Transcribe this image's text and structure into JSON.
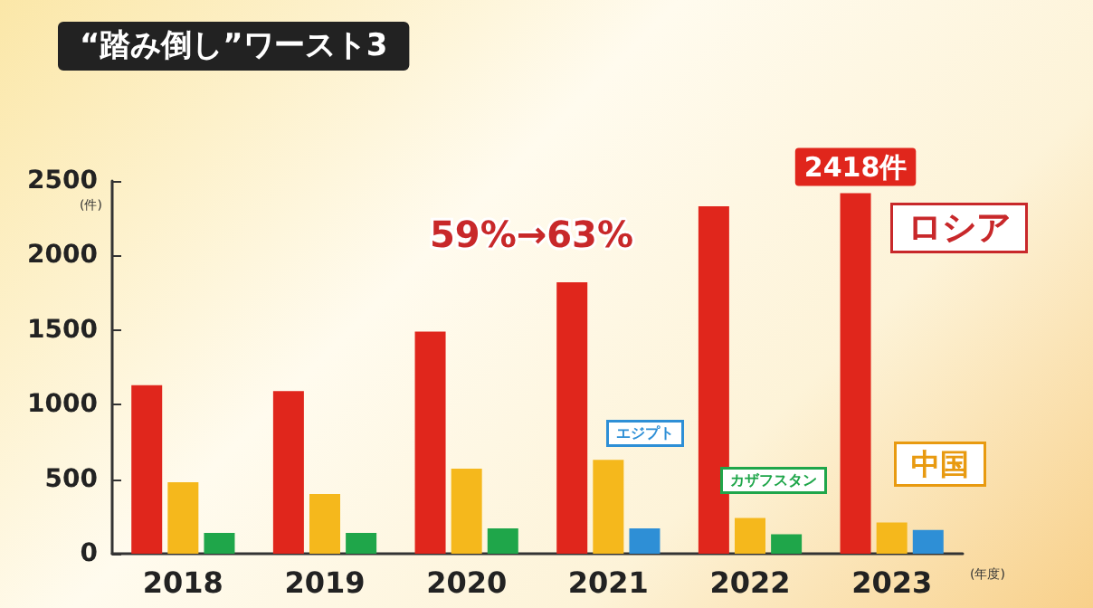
{
  "chart_data": {
    "type": "bar",
    "title": "“踏み倒し”ワースト3",
    "ylabel": "(件)",
    "xlabel": "(年度)",
    "categories": [
      "2018",
      "2019",
      "2020",
      "2021",
      "2022",
      "2023"
    ],
    "series": [
      {
        "color": "#e0261c",
        "values": [
          1130,
          1090,
          1490,
          1820,
          2330,
          2418
        ],
        "value_labels": [
          null,
          null,
          null,
          null,
          null,
          "2418件"
        ]
      },
      {
        "color": "#f5b81c",
        "values": [
          480,
          400,
          570,
          630,
          240,
          210
        ]
      },
      {
        "colors": [
          "#1fa64a",
          "#1fa64a",
          "#1fa64a",
          "#2e8fd6",
          "#1fa64a",
          "#2e8fd6"
        ],
        "values": [
          140,
          140,
          170,
          170,
          130,
          160
        ]
      }
    ],
    "ylim": [
      0,
      2500
    ],
    "yticks": [
      0,
      500,
      1000,
      1500,
      2000,
      2500
    ],
    "grid": false,
    "annotations": [
      "ロシア",
      "59%→63%",
      "中国",
      "エジプト",
      "カザフスタン"
    ]
  }
}
